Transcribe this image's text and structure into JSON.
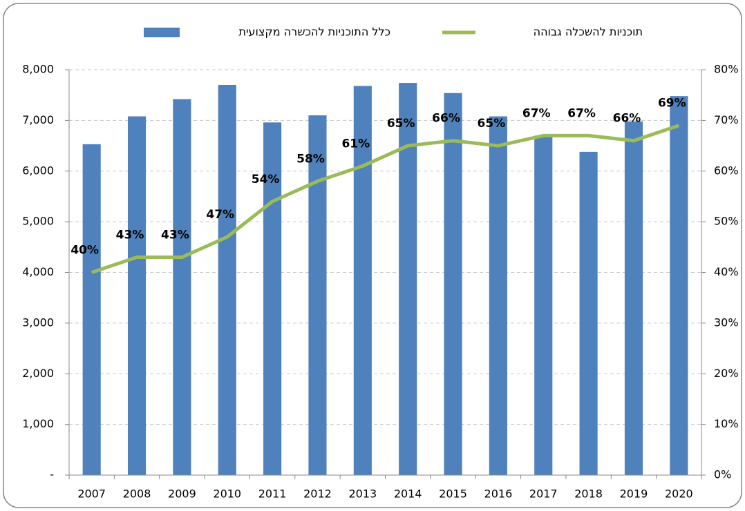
{
  "chart_data": {
    "type": "bar_line",
    "categories": [
      "2007",
      "2008",
      "2009",
      "2010",
      "2011",
      "2012",
      "2013",
      "2014",
      "2015",
      "2016",
      "2017",
      "2018",
      "2019",
      "2020"
    ],
    "series": [
      {
        "name": "כלל התוכניות להכשרה מקצועית",
        "type": "bar",
        "color": "#4f81bd",
        "values": [
          6530,
          7080,
          7420,
          7700,
          6960,
          7100,
          7680,
          7740,
          7540,
          7080,
          6700,
          6380,
          6980,
          7480
        ]
      },
      {
        "name": "תוכניות להשכלה גבוהה",
        "type": "line",
        "color": "#9bbb59",
        "axis": "y2",
        "values": [
          40,
          43,
          43,
          47,
          54,
          58,
          61,
          65,
          66,
          65,
          67,
          67,
          66,
          69
        ],
        "value_labels": [
          "40%",
          "43%",
          "43%",
          "47%",
          "54%",
          "58%",
          "61%",
          "65%",
          "66%",
          "65%",
          "67%",
          "67%",
          "66%",
          "69%"
        ]
      }
    ],
    "ylim": [
      0,
      8000
    ],
    "yticks": [
      {
        "value": 0,
        "label": "-"
      },
      {
        "value": 1000,
        "label": "1,000"
      },
      {
        "value": 2000,
        "label": "2,000"
      },
      {
        "value": 3000,
        "label": "3,000"
      },
      {
        "value": 4000,
        "label": "4,000"
      },
      {
        "value": 5000,
        "label": "5,000"
      },
      {
        "value": 6000,
        "label": "6,000"
      },
      {
        "value": 7000,
        "label": "7,000"
      },
      {
        "value": 8000,
        "label": "8,000"
      }
    ],
    "y2lim": [
      0,
      80
    ],
    "y2ticks": [
      {
        "value": 0,
        "label": "0%"
      },
      {
        "value": 10,
        "label": "10%"
      },
      {
        "value": 20,
        "label": "20%"
      },
      {
        "value": 30,
        "label": "30%"
      },
      {
        "value": 40,
        "label": "40%"
      },
      {
        "value": 50,
        "label": "50%"
      },
      {
        "value": 60,
        "label": "60%"
      },
      {
        "value": 70,
        "label": "70%"
      },
      {
        "value": 80,
        "label": "80%"
      }
    ],
    "grid": true
  }
}
